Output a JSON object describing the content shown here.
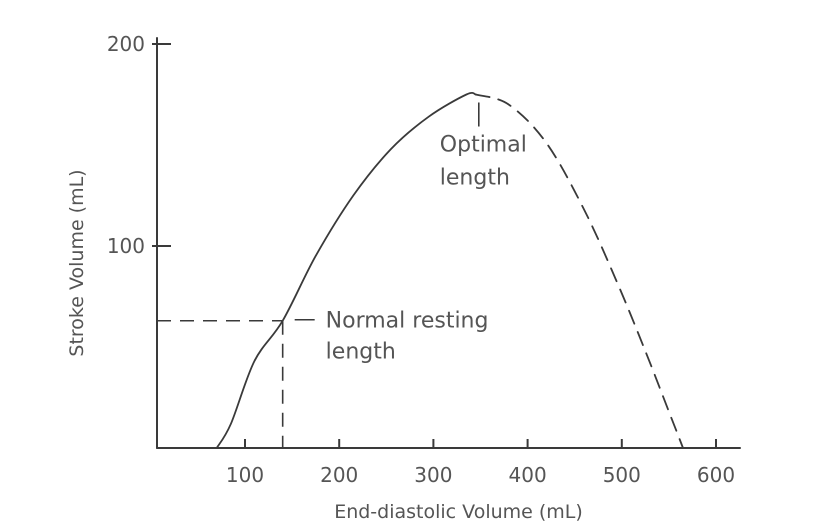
{
  "chart_data": {
    "type": "line",
    "title": "",
    "xlabel": "End-diastolic Volume (mL)",
    "ylabel": "Stroke Volume (mL)",
    "xlim": [
      0,
      620
    ],
    "ylim": [
      0,
      200
    ],
    "x_ticks": [
      100,
      200,
      300,
      400,
      500,
      600
    ],
    "y_ticks": [
      100,
      200
    ],
    "grid": false,
    "legend": "none",
    "series": [
      {
        "style": "solid",
        "x": [
          70,
          85,
          110,
          140,
          175,
          215,
          255,
          295,
          335,
          345
        ],
        "y": [
          0,
          12,
          43,
          63,
          95,
          125,
          148,
          164,
          175,
          175
        ]
      },
      {
        "style": "dashed",
        "x": [
          345,
          380,
          420,
          460,
          495,
          525,
          550,
          565
        ],
        "y": [
          175,
          170,
          151,
          118,
          82,
          48,
          18,
          0
        ]
      }
    ],
    "annotations": [
      {
        "text_lines": [
          "Normal resting",
          "length"
        ],
        "x": 140,
        "y": 63
      },
      {
        "text_lines": [
          "Optimal",
          "length"
        ],
        "x": 345,
        "y": 175
      }
    ]
  }
}
